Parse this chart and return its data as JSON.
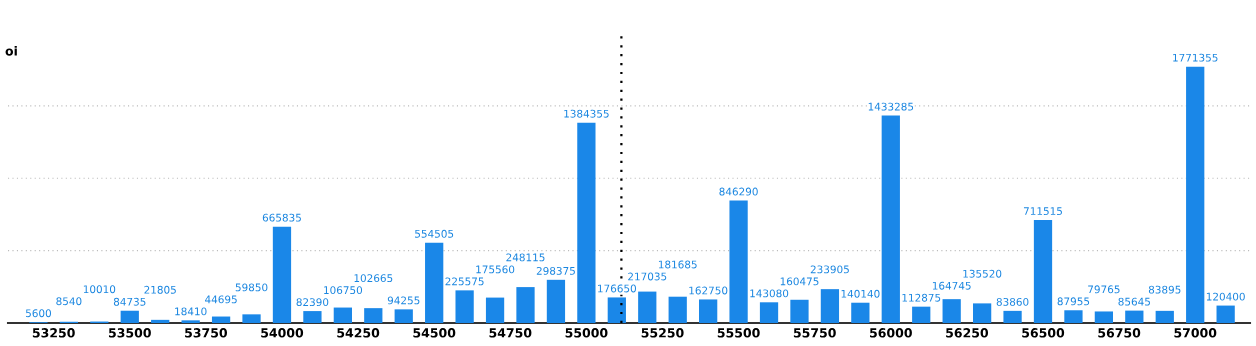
{
  "chart_data": {
    "type": "bar",
    "ylabel": "oi",
    "x": [
      53200,
      53300,
      53400,
      53500,
      53600,
      53700,
      53800,
      53900,
      54000,
      54100,
      54200,
      54300,
      54400,
      54500,
      54600,
      54700,
      54800,
      54900,
      55000,
      55100,
      55200,
      55300,
      55400,
      55500,
      55600,
      55700,
      55800,
      55900,
      56000,
      56100,
      56200,
      56300,
      56400,
      56500,
      56600,
      56700,
      56800,
      56900,
      57000,
      57100
    ],
    "values": [
      5600,
      8540,
      10010,
      84735,
      21805,
      18410,
      44695,
      59850,
      665835,
      82390,
      106750,
      102665,
      94255,
      554505,
      225575,
      175560,
      248115,
      298375,
      1384355,
      176650,
      217035,
      181685,
      162750,
      846290,
      143080,
      160475,
      233905,
      140140,
      1433285,
      112875,
      164745,
      135520,
      83860,
      711515,
      87955,
      79765,
      85645,
      83895,
      1771355,
      120400
    ],
    "color": "#1a87e8",
    "data_labels": true,
    "xlim": [
      53100,
      57180
    ],
    "xticks": [
      53250,
      53500,
      53750,
      54000,
      54250,
      54500,
      54750,
      55000,
      55250,
      55500,
      55750,
      56000,
      56250,
      56500,
      56750,
      57000
    ],
    "yticks": [
      {
        "value": 500000,
        "label": null
      },
      {
        "value": 1000000,
        "label": null
      },
      {
        "value": 1500000,
        "label": null
      }
    ],
    "grid": "y",
    "tick_labels": "x",
    "ref_lines": [
      {
        "axis": "x",
        "value": 55115,
        "label": null,
        "color": "#000000",
        "line_style": "dotted"
      }
    ]
  }
}
